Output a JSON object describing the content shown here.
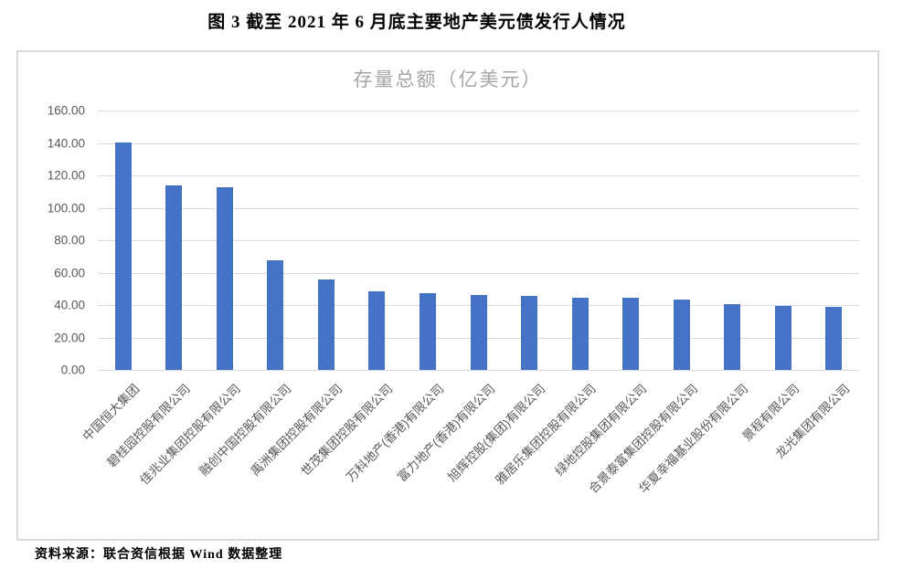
{
  "figure": {
    "title": "图 3  截至 2021 年 6 月底主要地产美元债发行人情况"
  },
  "chart": {
    "title": "存量总额（亿美元）"
  },
  "chart_data": {
    "type": "bar",
    "title": "存量总额（亿美元）",
    "categories": [
      "中国恒大集团",
      "碧桂园控股有限公司",
      "佳兆业集团控股有限公司",
      "融创中国控股有限公司",
      "禹洲集团控股有限公司",
      "世茂集团控股有限公司",
      "万科地产(香港)有限公司",
      "富力地产(香港)有限公司",
      "旭辉控股(集团)有限公司",
      "雅居乐集团控股有限公司",
      "绿地控股集团有限公司",
      "合景泰富集团控股有限公司",
      "华夏幸福基业股份有限公司",
      "景程有限公司",
      "龙光集团有限公司"
    ],
    "values": [
      140.2,
      113.6,
      112.6,
      67.5,
      56.0,
      48.5,
      47.5,
      46.3,
      45.4,
      44.5,
      44.3,
      43.3,
      40.7,
      39.6,
      38.8
    ],
    "xlabel": "",
    "ylabel": "",
    "ylim": [
      0,
      160
    ],
    "ytick_step": 20,
    "ytick_labels": [
      "0.00",
      "20.00",
      "40.00",
      "60.00",
      "80.00",
      "100.00",
      "120.00",
      "140.00",
      "160.00"
    ],
    "grid": true,
    "legend": "none",
    "bar_color": "#4472C4"
  },
  "colors": {
    "bar": "#4472C4",
    "gridline": "#d9d9d9",
    "chart_border": "#d9d9d9",
    "axis_text": "#595959",
    "chart_title_text": "#a6a6a6"
  },
  "footer": {
    "source": "资料来源：联合资信根据 Wind 数据整理"
  }
}
